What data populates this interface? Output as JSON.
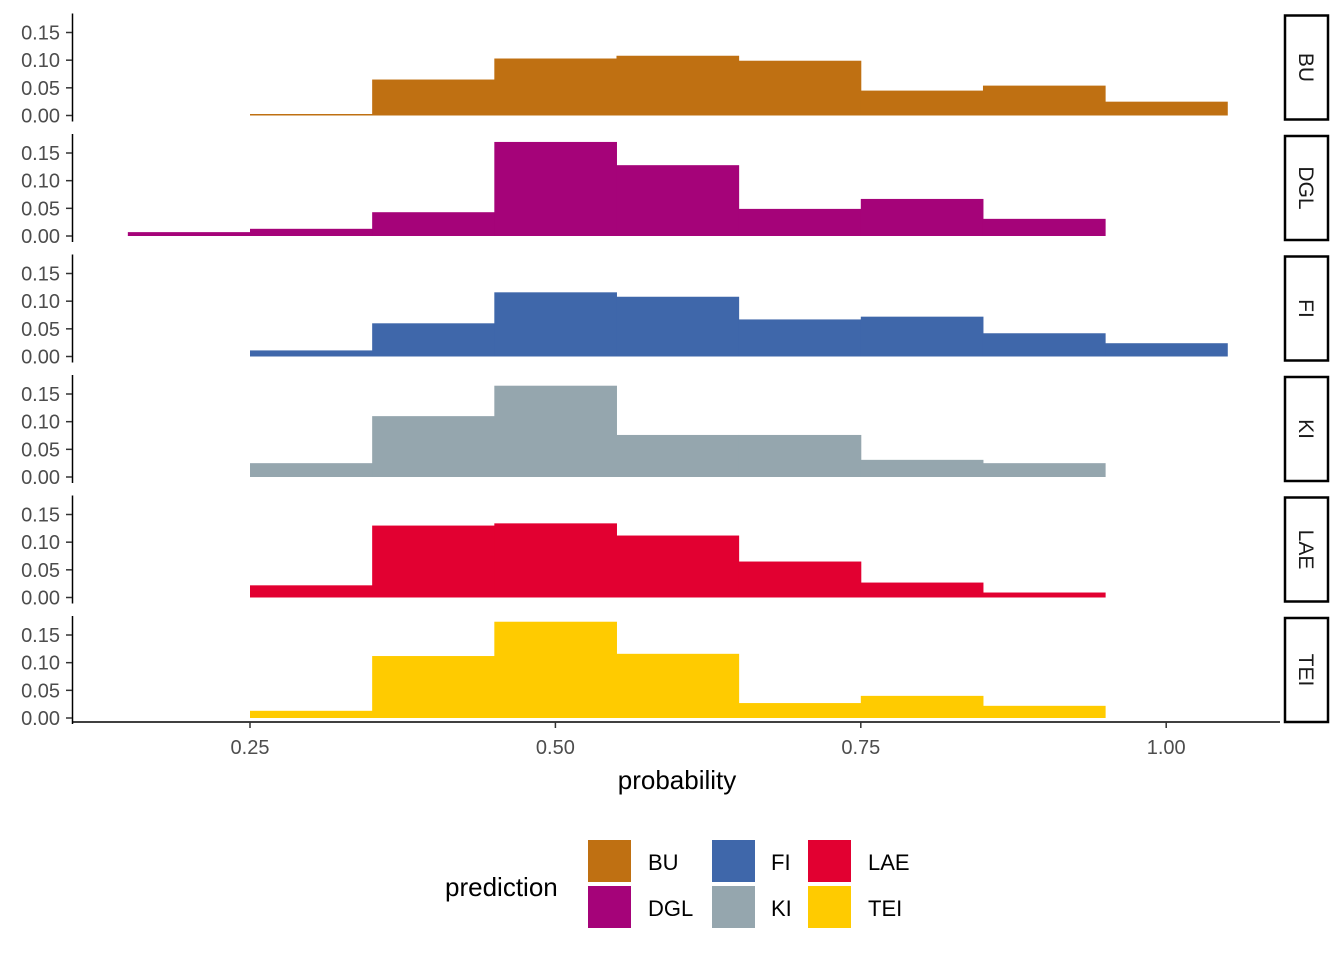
{
  "chart_data": {
    "type": "bar",
    "subtype": "faceted histogram",
    "xlabel": "probability",
    "ylabel": "",
    "xlim": [
      0.12,
      1.1
    ],
    "ylim": [
      0,
      0.18
    ],
    "x_ticks": [
      "0.25",
      "0.50",
      "0.75",
      "1.00"
    ],
    "x_tick_values": [
      0.25,
      0.5,
      0.75,
      1.0
    ],
    "y_ticks": [
      "0.00",
      "0.05",
      "0.10",
      "0.15"
    ],
    "y_tick_values": [
      0,
      0.05,
      0.1,
      0.15
    ],
    "bin_width": 0.1,
    "bin_centers": [
      0.2,
      0.3,
      0.4,
      0.5,
      0.6,
      0.7,
      0.8,
      0.9,
      1.0
    ],
    "grid": false,
    "legend": {
      "title": "prediction",
      "placement": "bottom"
    },
    "series": [
      {
        "name": "BU",
        "color": "#BF7012",
        "values": [
          null,
          0.002,
          0.065,
          0.103,
          0.108,
          0.099,
          0.045,
          0.054,
          0.025
        ]
      },
      {
        "name": "DGL",
        "color": "#A50379",
        "values": [
          0.007,
          0.013,
          0.043,
          0.17,
          0.128,
          0.049,
          0.067,
          0.031,
          null
        ]
      },
      {
        "name": "FI",
        "color": "#3F67AA",
        "values": [
          null,
          0.011,
          0.06,
          0.116,
          0.108,
          0.067,
          0.072,
          0.042,
          0.024
        ]
      },
      {
        "name": "KI",
        "color": "#95A6AE",
        "values": [
          null,
          0.025,
          0.11,
          0.165,
          0.076,
          0.076,
          0.031,
          0.025,
          null
        ]
      },
      {
        "name": "LAE",
        "color": "#E20031",
        "values": [
          null,
          0.022,
          0.13,
          0.134,
          0.112,
          0.065,
          0.027,
          0.009,
          null
        ]
      },
      {
        "name": "TEI",
        "color": "#FFCB00",
        "values": [
          null,
          0.013,
          0.112,
          0.174,
          0.116,
          0.027,
          0.04,
          0.022,
          null
        ]
      }
    ]
  }
}
